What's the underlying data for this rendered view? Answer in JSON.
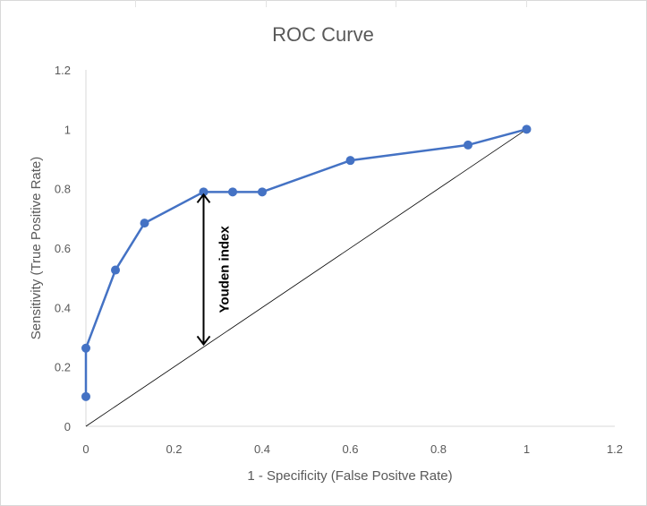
{
  "chart_data": {
    "type": "scatter",
    "title": "ROC Curve",
    "xlabel": "1 - Specificity (False Positve Rate)",
    "ylabel": "Sensitivity (True Positive Rate)",
    "xlim": [
      0,
      1.2
    ],
    "ylim": [
      0,
      1.2
    ],
    "x_ticks": [
      "0",
      "0.2",
      "0.4",
      "0.6",
      "0.8",
      "1",
      "1.2"
    ],
    "y_ticks": [
      "0",
      "0.2",
      "0.4",
      "0.6",
      "0.8",
      "1",
      "1.2"
    ],
    "grid": false,
    "series": [
      {
        "color": "#4472c4",
        "x": [
          0,
          0,
          0.067,
          0.133,
          0.267,
          0.333,
          0.4,
          0.6,
          0.867,
          1.0
        ],
        "y": [
          0.1,
          0.263,
          0.526,
          0.684,
          0.789,
          0.789,
          0.789,
          0.895,
          0.947,
          1.0
        ]
      }
    ],
    "reference_line": {
      "x": [
        0,
        1
      ],
      "y": [
        0,
        1
      ],
      "color": "#000000"
    },
    "annotation": {
      "text": "Youden index",
      "x": 0.267,
      "y_from": 0.267,
      "y_to": 0.789
    }
  }
}
